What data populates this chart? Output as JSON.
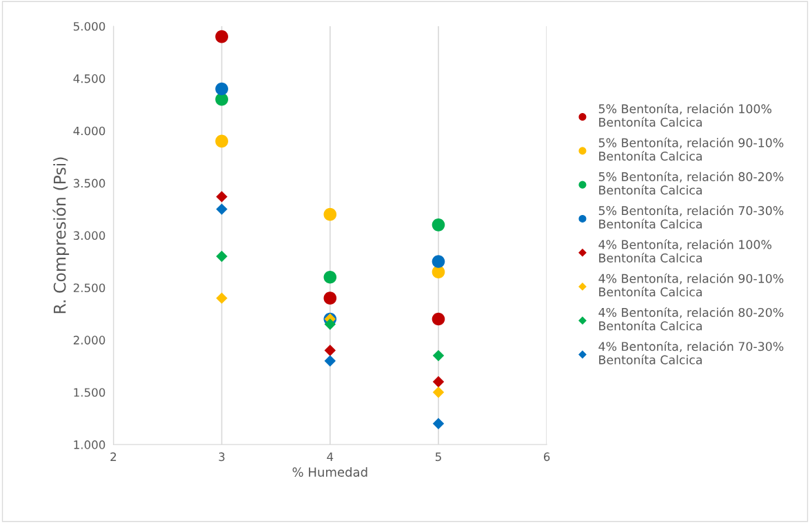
{
  "chart_data": {
    "type": "scatter",
    "xlabel": "% Humedad",
    "ylabel": "R. Compresión (Psi)",
    "x": [
      3,
      4,
      5
    ],
    "xlim": [
      2,
      6
    ],
    "xticks": [
      2,
      3,
      4,
      5,
      6
    ],
    "ylim": [
      1000,
      5000
    ],
    "yticks": [
      {
        "value": 1000,
        "label": "1.000"
      },
      {
        "value": 1500,
        "label": "1.500"
      },
      {
        "value": 2000,
        "label": "2.000"
      },
      {
        "value": 2500,
        "label": "2.500"
      },
      {
        "value": 3000,
        "label": "3.000"
      },
      {
        "value": 3500,
        "label": "3.500"
      },
      {
        "value": 4000,
        "label": "4.000"
      },
      {
        "value": 4500,
        "label": "4.500"
      },
      {
        "value": 5000,
        "label": "5.000"
      }
    ],
    "grid": "x",
    "legend": "right",
    "series": [
      {
        "name": "5% Bentoníta, relación 100%\nBentoníta Calcica",
        "color": "#c00000",
        "marker": "circle",
        "values": [
          4900,
          2400,
          2200
        ]
      },
      {
        "name": "5% Bentoníta, relación 90-10%\nBentoníta Calcica",
        "color": "#ffc000",
        "marker": "circle",
        "values": [
          3900,
          3200,
          2650
        ]
      },
      {
        "name": "5% Bentoníta, relación 80-20%\nBentoníta Calcica",
        "color": "#00b050",
        "marker": "circle",
        "values": [
          4300,
          2600,
          3100
        ]
      },
      {
        "name": "5% Bentoníta, relación 70-30%\nBentoníta Calcica",
        "color": "#0070c0",
        "marker": "circle",
        "values": [
          4400,
          2200,
          2750
        ]
      },
      {
        "name": "4% Bentoníta, relación 100%\nBentoníta Calcica",
        "color": "#c00000",
        "marker": "diamond",
        "values": [
          3370,
          1900,
          1600
        ]
      },
      {
        "name": "4% Bentoníta, relación 90-10%\nBentoníta Calcica",
        "color": "#ffc000",
        "marker": "diamond",
        "values": [
          2400,
          2200,
          1500
        ]
      },
      {
        "name": "4% Bentoníta, relación 80-20%\nBentoníta Calcica",
        "color": "#00b050",
        "marker": "diamond",
        "values": [
          2800,
          2150,
          1850
        ]
      },
      {
        "name": "4% Bentoníta, relación 70-30%\nBentoníta Calcica",
        "color": "#0070c0",
        "marker": "diamond",
        "values": [
          3250,
          1800,
          1200
        ]
      }
    ]
  }
}
